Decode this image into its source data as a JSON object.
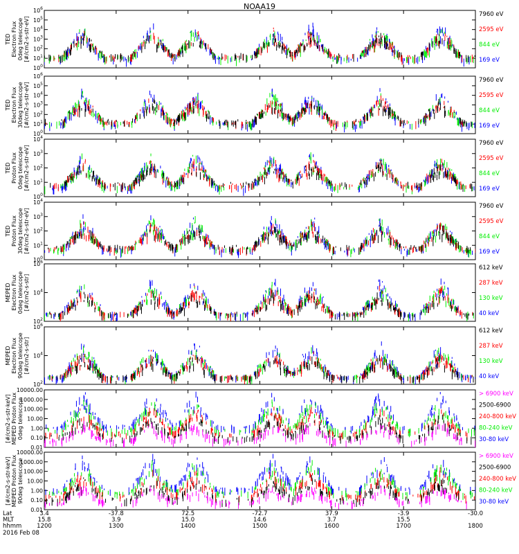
{
  "title": "NOAA19",
  "colors": {
    "black": "#000000",
    "red": "#ff0000",
    "green": "#00ee00",
    "blue": "#0000ff",
    "magenta": "#ff00ff"
  },
  "chart_data": [
    {
      "type": "scatter",
      "instrument": "TED",
      "ylabel": [
        "TED",
        "Electron Flux",
        "0deg telescope",
        "[#/cm2-s-str-eV]"
      ],
      "log": true,
      "ylim": [
        1,
        1000000
      ],
      "yticks": [
        "10^0",
        "10^1",
        "10^2",
        "10^3",
        "10^4",
        "10^5",
        "10^6"
      ],
      "legend": [
        {
          "label": "7960 eV",
          "color": "black"
        },
        {
          "label": "2595 eV",
          "color": "red"
        },
        {
          "label": "844 eV",
          "color": "green"
        },
        {
          "label": "169 eV",
          "color": "blue"
        }
      ]
    },
    {
      "type": "scatter",
      "instrument": "TED",
      "ylabel": [
        "TED",
        "Electron Flux",
        "30deg telescope",
        "[#/cm2-s-str-eV]"
      ],
      "log": true,
      "ylim": [
        1,
        1000000
      ],
      "yticks": [
        "10^0",
        "10^1",
        "10^2",
        "10^3",
        "10^4",
        "10^5",
        "10^6"
      ],
      "legend": [
        {
          "label": "7960 eV",
          "color": "black"
        },
        {
          "label": "2595 eV",
          "color": "red"
        },
        {
          "label": "844 eV",
          "color": "green"
        },
        {
          "label": "169 eV",
          "color": "blue"
        }
      ]
    },
    {
      "type": "scatter",
      "instrument": "TED",
      "ylabel": [
        "TED",
        "Proton Flux",
        "0deg telescope",
        "[#/cm2-s-str-eV]"
      ],
      "log": true,
      "ylim": [
        1,
        10000
      ],
      "yticks": [
        "10^0",
        "10^1",
        "10^2",
        "10^3",
        "10^4"
      ],
      "legend": [
        {
          "label": "7960 eV",
          "color": "black"
        },
        {
          "label": "2595 eV",
          "color": "red"
        },
        {
          "label": "844 eV",
          "color": "green"
        },
        {
          "label": "169 eV",
          "color": "blue"
        }
      ]
    },
    {
      "type": "scatter",
      "instrument": "TED",
      "ylabel": [
        "TED",
        "Proton Flux",
        "30deg telescope",
        "[#/cm2-s-str-eV]"
      ],
      "log": true,
      "ylim": [
        1,
        10000
      ],
      "yticks": [
        "10^0",
        "10^1",
        "10^2",
        "10^3",
        "10^4"
      ],
      "legend": [
        {
          "label": "7960 eV",
          "color": "black"
        },
        {
          "label": "2595 eV",
          "color": "red"
        },
        {
          "label": "844 eV",
          "color": "green"
        },
        {
          "label": "169 eV",
          "color": "blue"
        }
      ]
    },
    {
      "type": "scatter",
      "instrument": "MEPED",
      "ylabel": [
        "MEPED",
        "Electron Flux",
        "0deg telescope",
        "[#/cm2-s-str]"
      ],
      "log": true,
      "ylim": [
        10,
        1000000
      ],
      "yticks": [
        "10^2",
        "10^4",
        "10^6"
      ],
      "legend": [
        {
          "label": "612 keV",
          "color": "black"
        },
        {
          "label": "287 keV",
          "color": "red"
        },
        {
          "label": "130 keV",
          "color": "green"
        },
        {
          "label": "40 keV",
          "color": "blue"
        }
      ]
    },
    {
      "type": "scatter",
      "instrument": "MEPED",
      "ylabel": [
        "MEPED",
        "Electron Flux",
        "90deg telescope",
        "[#/cm2-s-str]"
      ],
      "log": true,
      "ylim": [
        10,
        1000000
      ],
      "yticks": [
        "10^2",
        "10^4",
        "10^6"
      ],
      "legend": [
        {
          "label": "612 keV",
          "color": "black"
        },
        {
          "label": "287 keV",
          "color": "red"
        },
        {
          "label": "130 keV",
          "color": "green"
        },
        {
          "label": "40 keV",
          "color": "blue"
        }
      ]
    },
    {
      "type": "scatter",
      "instrument": "MEPED",
      "ylabel": [
        "[#/cm2-s-str-keV]",
        "MEPED Proton Flux",
        "0deg telescope"
      ],
      "log": true,
      "ylim": [
        0.01,
        10000
      ],
      "yticks": [
        "0.01",
        "0.10",
        "1.00",
        "10.00",
        "100.00",
        "1000.00",
        "10000.00"
      ],
      "legend": [
        {
          "label": "> 6900 keV",
          "color": "magenta"
        },
        {
          "label": "2500-6900",
          "color": "black"
        },
        {
          "label": "240-800 keV",
          "color": "red"
        },
        {
          "label": "80-240 keV",
          "color": "green"
        },
        {
          "label": "30-80 keV",
          "color": "blue"
        }
      ]
    },
    {
      "type": "scatter",
      "instrument": "MEPED",
      "ylabel": [
        "[#/cm2-s-str-keV]",
        "MEPED Proton Flux",
        "90deg telescope"
      ],
      "log": true,
      "ylim": [
        0.01,
        10000
      ],
      "yticks": [
        "0.01",
        "0.10",
        "1.00",
        "10.00",
        "100.00",
        "1000.00",
        "10000.00"
      ],
      "legend": [
        {
          "label": "> 6900 keV",
          "color": "magenta"
        },
        {
          "label": "2500-6900",
          "color": "black"
        },
        {
          "label": "240-800 keV",
          "color": "red"
        },
        {
          "label": "80-240 keV",
          "color": "green"
        },
        {
          "label": "30-80 keV",
          "color": "blue"
        }
      ]
    }
  ],
  "xaxis": {
    "row_labels": [
      "Lat",
      "MLT",
      "hhmm"
    ],
    "lat": [
      "3.4",
      "-37.8",
      "72.5",
      "-72.7",
      "37.9",
      "-3.9",
      "-30.0"
    ],
    "mlt": [
      "15.8",
      "3.9",
      "15.0",
      "14.6",
      "3.7",
      "15.5",
      ""
    ],
    "hhmm": [
      "1200",
      "1300",
      "1400",
      "1500",
      "1600",
      "1700",
      "1800"
    ],
    "date": "2016 Feb 08"
  },
  "passes_hhmm": [
    "1212",
    "1320",
    "1410",
    "1500",
    "1535",
    "1650",
    "1730"
  ]
}
